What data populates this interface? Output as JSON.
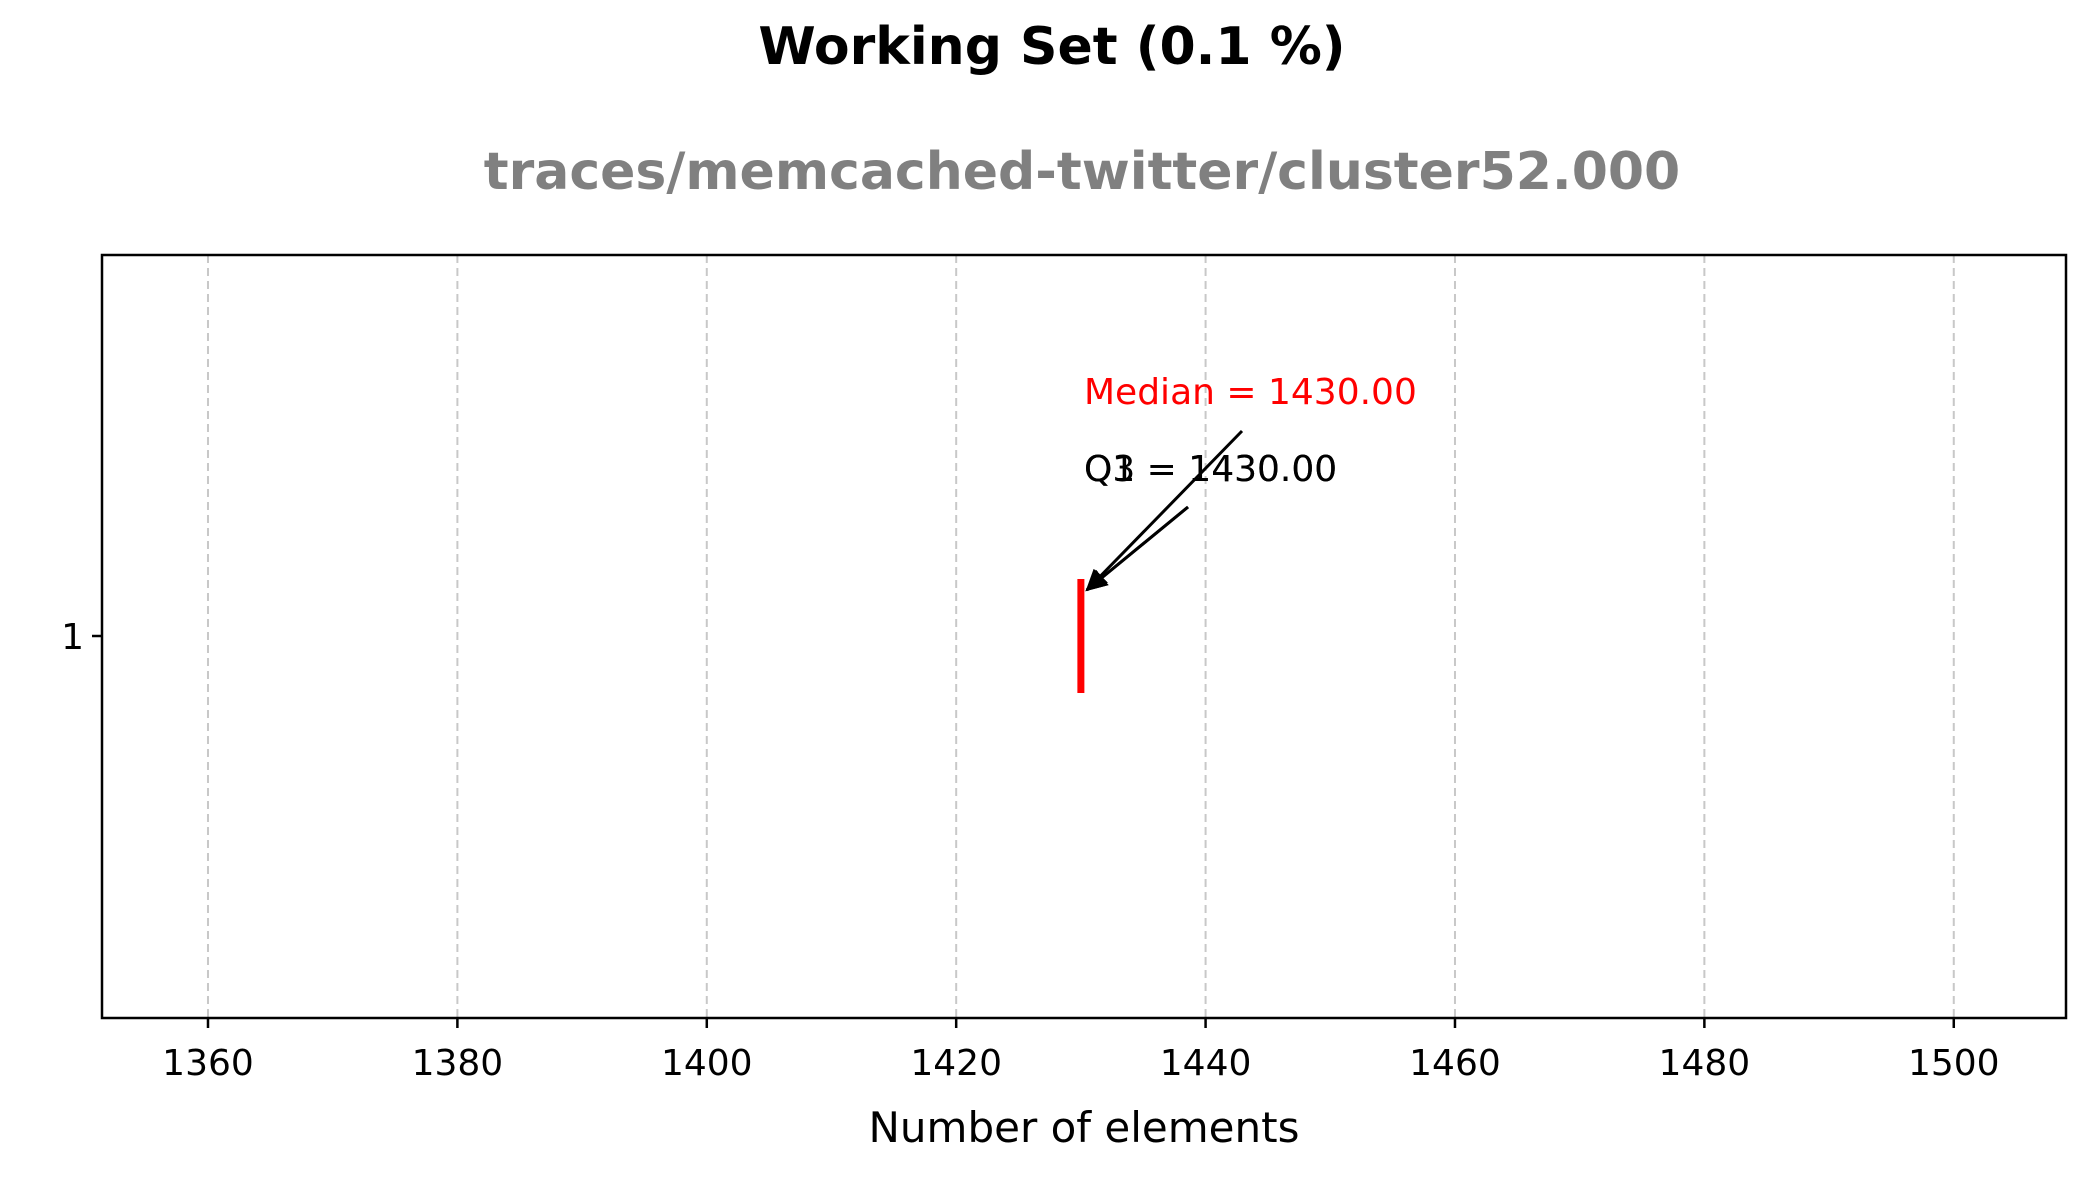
{
  "chart_data": {
    "type": "box",
    "title": "Working Set (0.1 %)",
    "subtitle": "traces/memcached-twitter/cluster52.000",
    "xlabel": "Number of elements",
    "ylabel": "",
    "xlim": [
      1351.5,
      1509
    ],
    "x_ticks": [
      1360,
      1380,
      1400,
      1420,
      1440,
      1460,
      1480,
      1500
    ],
    "y_ticks": [
      "1"
    ],
    "grid": "x-dashed",
    "series": [
      {
        "label": "1",
        "min": 1430,
        "q1": 1430,
        "median": 1430,
        "q3": 1430,
        "max": 1430
      }
    ],
    "annotations": [
      {
        "id": "median",
        "text": "Median = 1430.00",
        "target_x": 1430,
        "color": "#ff0000"
      },
      {
        "id": "q1",
        "text": "Q1 = 1430.00",
        "target_x": 1430,
        "color": "#000000"
      },
      {
        "id": "q3",
        "text": "Q3 = 1430.00",
        "target_x": 1430,
        "color": "#000000"
      }
    ],
    "colors": {
      "median": "#ff0000",
      "grid": "#c8c8c8",
      "subtitle": "#808080",
      "axis": "#000000"
    }
  }
}
